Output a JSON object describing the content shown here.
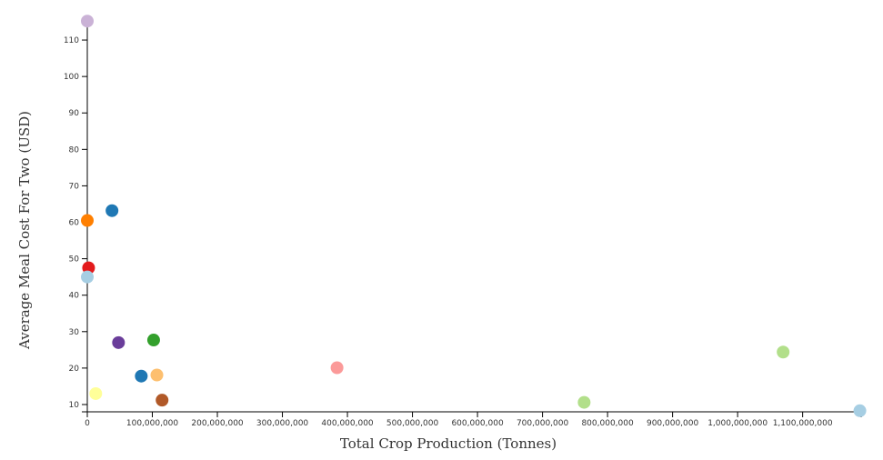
{
  "chart_data": {
    "type": "scatter",
    "xlabel": "Total Crop Production (Tonnes)",
    "ylabel": "Average Meal Cost For Two (USD)",
    "xlim": [
      0,
      1190000000
    ],
    "ylim": [
      8,
      116
    ],
    "x_ticks": [
      0,
      100000000,
      200000000,
      300000000,
      400000000,
      500000000,
      600000000,
      700000000,
      800000000,
      900000000,
      1000000000,
      1100000000
    ],
    "x_tick_labels": [
      "0",
      "100,000,000",
      "200,000,000",
      "300,000,000",
      "400,000,000",
      "500,000,000",
      "600,000,000",
      "700,000,000",
      "800,000,000",
      "900,000,000",
      "1,000,000,000",
      "1,100,000,000"
    ],
    "y_ticks": [
      10,
      20,
      30,
      40,
      50,
      60,
      70,
      80,
      90,
      100,
      110
    ],
    "y_tick_labels": [
      "10",
      "20",
      "30",
      "40",
      "50",
      "60",
      "70",
      "80",
      "90",
      "100",
      "110"
    ],
    "grid": false,
    "legend": "none",
    "points": [
      {
        "x": 0,
        "y": 115.2,
        "color": "#cab2d6"
      },
      {
        "x": 38000000,
        "y": 63.2,
        "color": "#1f78b4"
      },
      {
        "x": 0,
        "y": 60.5,
        "color": "#ff7f00"
      },
      {
        "x": 2000000,
        "y": 47.5,
        "color": "#e31a1c"
      },
      {
        "x": 0,
        "y": 45.0,
        "color": "#a6cee3"
      },
      {
        "x": 48000000,
        "y": 27.0,
        "color": "#6a3d9a"
      },
      {
        "x": 102000000,
        "y": 27.7,
        "color": "#33a02c"
      },
      {
        "x": 83000000,
        "y": 17.8,
        "color": "#1f78b4"
      },
      {
        "x": 107000000,
        "y": 18.1,
        "color": "#fdbf6f"
      },
      {
        "x": 115000000,
        "y": 11.2,
        "color": "#b15928"
      },
      {
        "x": 13000000,
        "y": 13.0,
        "color": "#ffff99"
      },
      {
        "x": 384000000,
        "y": 20.1,
        "color": "#fb9a99"
      },
      {
        "x": 764000000,
        "y": 10.6,
        "color": "#b2df8a"
      },
      {
        "x": 1070000000,
        "y": 24.4,
        "color": "#b2df8a"
      },
      {
        "x": 1188000000,
        "y": 8.3,
        "color": "#a6cee3"
      }
    ]
  }
}
